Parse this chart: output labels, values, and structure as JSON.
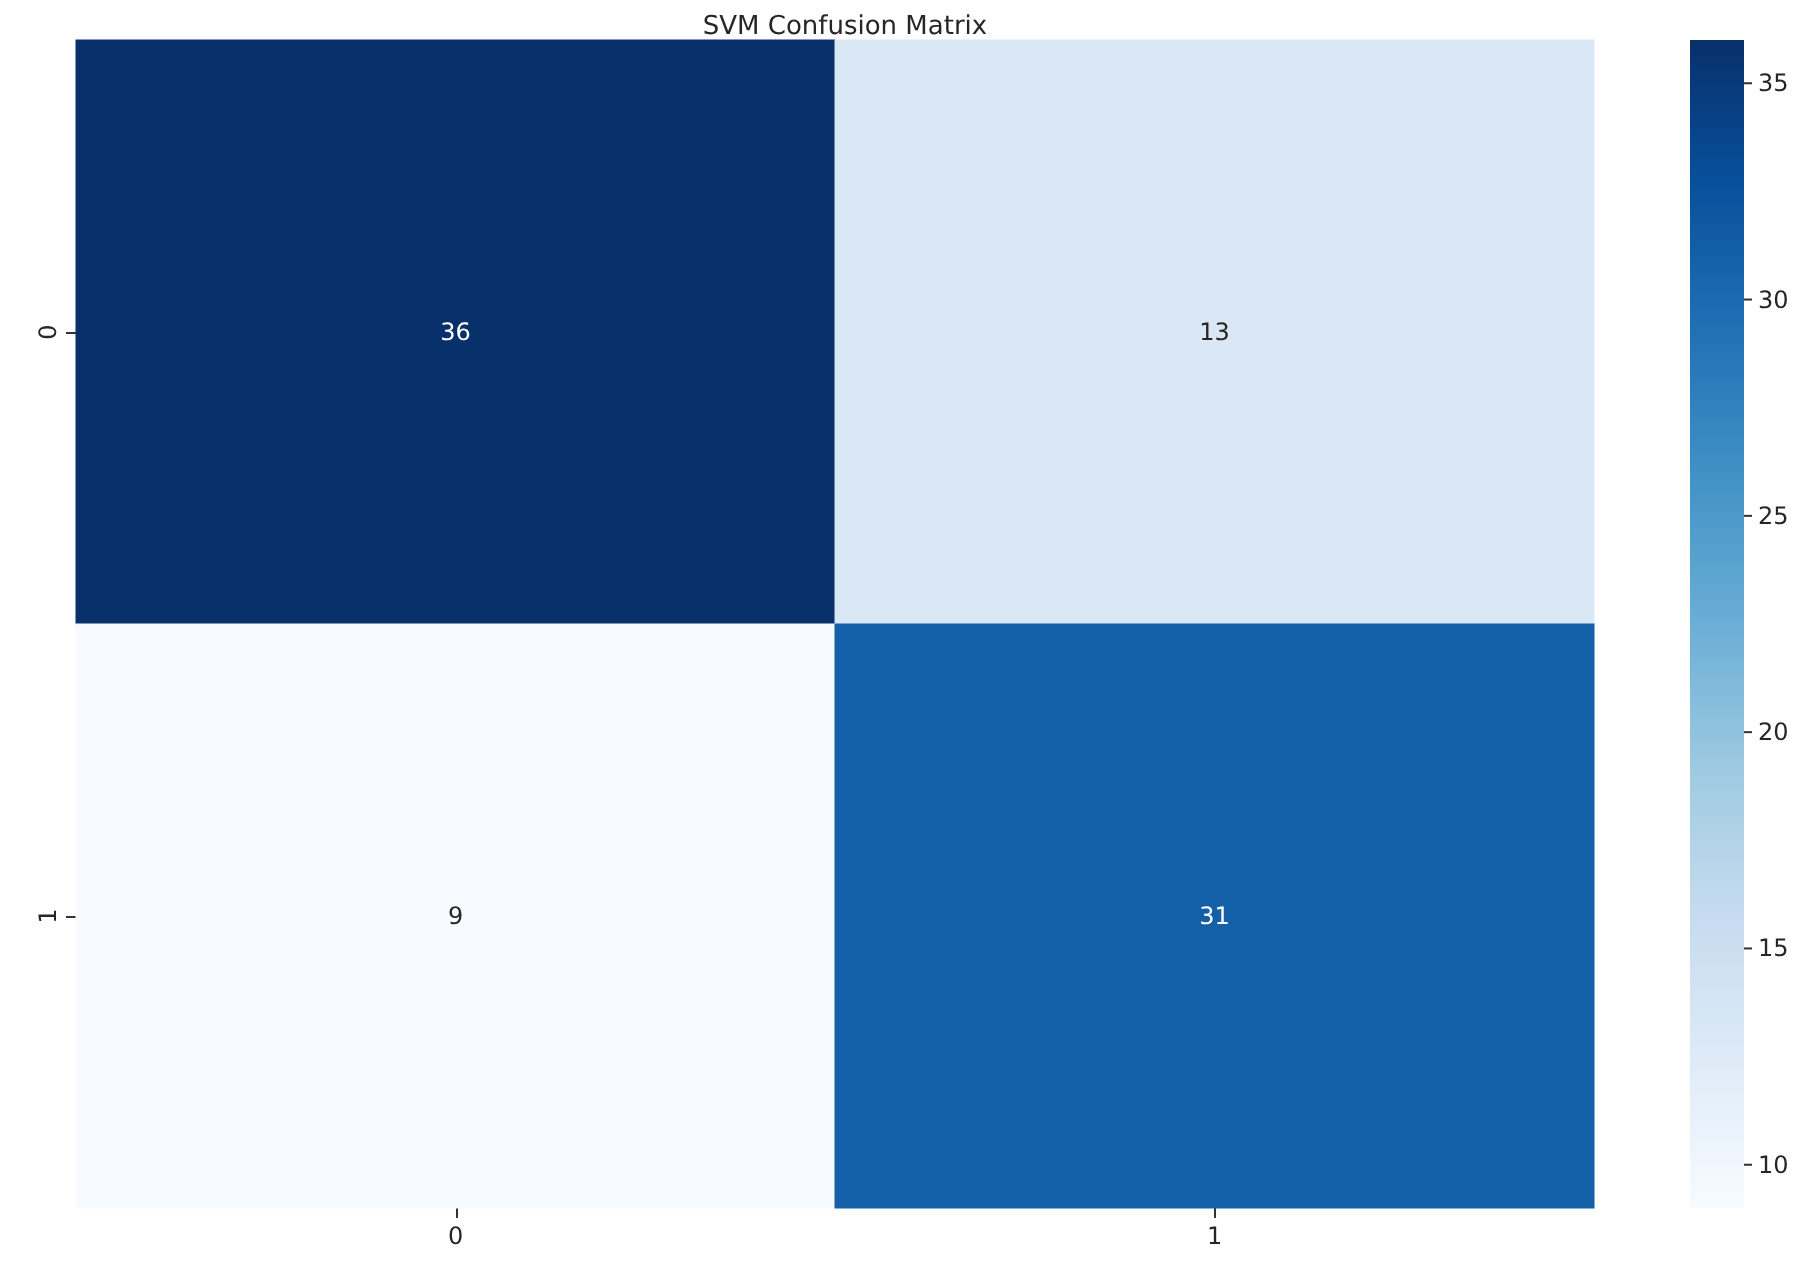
{
  "chart_data": {
    "type": "heatmap",
    "title": "SVM Confusion Matrix",
    "categories": [
      "0",
      "1"
    ],
    "y_categories": [
      "0",
      "1"
    ],
    "cells": [
      [
        36,
        13
      ],
      [
        9,
        31
      ]
    ],
    "data_labels": true,
    "clim": [
      9,
      36
    ],
    "cticks": [
      10,
      15,
      20,
      25,
      30,
      35
    ]
  }
}
